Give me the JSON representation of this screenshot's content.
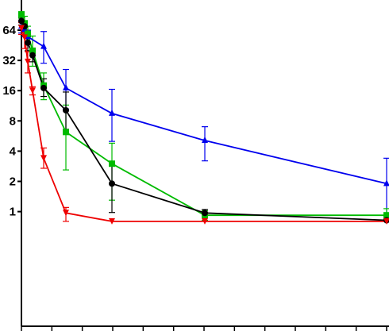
{
  "chart_data": {
    "type": "line",
    "title": "",
    "xlabel": "",
    "ylabel": "",
    "y_scale": "log2",
    "ylim": [
      0.8,
      100
    ],
    "xlim": [
      0,
      24
    ],
    "grid": false,
    "legend": "none",
    "y_tick_labels": [
      "1",
      "2",
      "4",
      "8",
      "16",
      "32",
      "64"
    ],
    "y_ticks": [
      1,
      2,
      4,
      8,
      16,
      32,
      64
    ],
    "x_ticks": [
      0,
      2,
      4,
      6,
      8,
      10,
      12,
      14,
      16,
      18,
      20,
      22,
      24
    ],
    "series": [
      {
        "color": "#0000ee",
        "marker": "triangle-up",
        "points": [
          {
            "x": 0,
            "y": 70,
            "lo": 60,
            "hi": 78
          },
          {
            "x": 0.5,
            "y": 65,
            "lo": 55,
            "hi": 75
          },
          {
            "x": 1,
            "y": 55,
            "lo": 47,
            "hi": 64
          },
          {
            "x": 3,
            "y": 44,
            "lo": 30,
            "hi": 62
          },
          {
            "x": 6,
            "y": 17,
            "lo": 10.5,
            "hi": 26
          },
          {
            "x": 12,
            "y": 9.5,
            "lo": 5,
            "hi": 16.5
          },
          {
            "x": 24,
            "y": 5.1,
            "lo": 3.2,
            "hi": 7
          },
          {
            "x": 48,
            "y": 1.9,
            "lo": 0.8,
            "hi": 3.4
          }
        ]
      },
      {
        "color": "#00bb00",
        "marker": "square",
        "points": [
          {
            "x": 0,
            "y": 92,
            "lo": 84,
            "hi": 96
          },
          {
            "x": 0.5,
            "y": 75,
            "lo": 62,
            "hi": 88
          },
          {
            "x": 1,
            "y": 59,
            "lo": 46,
            "hi": 70
          },
          {
            "x": 2,
            "y": 40,
            "lo": 28,
            "hi": 56
          },
          {
            "x": 3,
            "y": 18,
            "lo": 13,
            "hi": 24
          },
          {
            "x": 6,
            "y": 6.2,
            "lo": 2.6,
            "hi": 11.5
          },
          {
            "x": 12,
            "y": 3.0,
            "lo": 1.3,
            "hi": 4.8
          },
          {
            "x": 24,
            "y": 0.92,
            "lo": 0.82,
            "hi": 1.02
          },
          {
            "x": 48,
            "y": 0.92,
            "lo": 0.82,
            "hi": 1.07
          }
        ]
      },
      {
        "color": "#000000",
        "marker": "circle",
        "points": [
          {
            "x": 0,
            "y": 79,
            "lo": 72,
            "hi": 86
          },
          {
            "x": 0.5,
            "y": 70,
            "lo": 60,
            "hi": 78
          },
          {
            "x": 1,
            "y": 48,
            "lo": 40,
            "hi": 55
          },
          {
            "x": 2,
            "y": 36,
            "lo": 31,
            "hi": 41
          },
          {
            "x": 3,
            "y": 17,
            "lo": 14,
            "hi": 21
          },
          {
            "x": 6,
            "y": 10.2,
            "lo": 6.6,
            "hi": 15.5
          },
          {
            "x": 12,
            "y": 1.9,
            "lo": 0.98,
            "hi": 3.0
          },
          {
            "x": 24,
            "y": 0.97,
            "lo": 0.92,
            "hi": 1.05
          },
          {
            "x": 48,
            "y": 0.82,
            "lo": 0.8,
            "hi": 0.85
          }
        ]
      },
      {
        "color": "#ee0000",
        "marker": "triangle-down",
        "points": [
          {
            "x": 0,
            "y": 67,
            "lo": 58,
            "hi": 76
          },
          {
            "x": 0.5,
            "y": 54,
            "lo": 42,
            "hi": 64
          },
          {
            "x": 1,
            "y": 31,
            "lo": 24,
            "hi": 39
          },
          {
            "x": 2,
            "y": 16,
            "lo": 14.5,
            "hi": 17.5
          },
          {
            "x": 3,
            "y": 3.4,
            "lo": 2.7,
            "hi": 4.3
          },
          {
            "x": 6,
            "y": 0.97,
            "lo": 0.8,
            "hi": 1.1
          },
          {
            "x": 12,
            "y": 0.8,
            "lo": 0.8,
            "hi": 0.8
          },
          {
            "x": 24,
            "y": 0.8,
            "lo": 0.8,
            "hi": 0.8
          },
          {
            "x": 48,
            "y": 0.8,
            "lo": 0.8,
            "hi": 0.8
          }
        ]
      }
    ]
  }
}
